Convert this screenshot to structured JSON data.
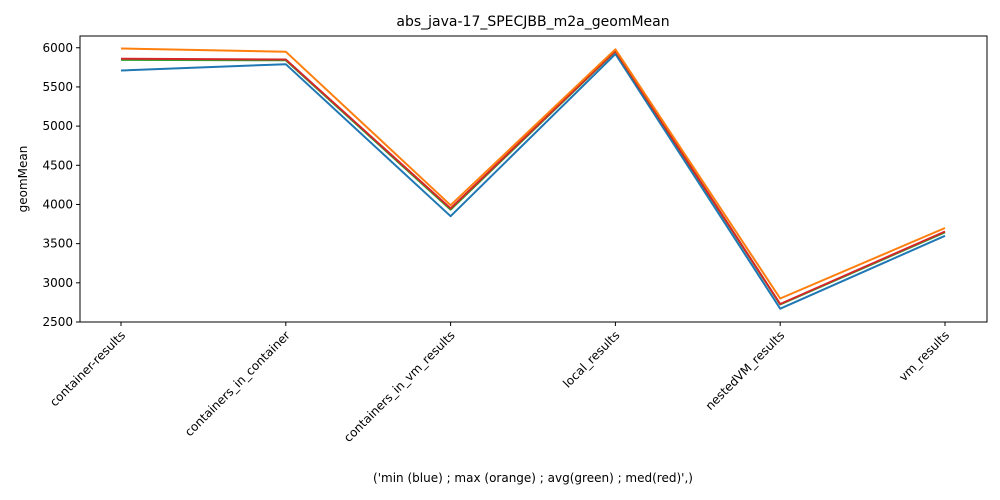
{
  "chart_data": {
    "type": "line",
    "title": "abs_java-17_SPECJBB_m2a_geomMean",
    "xlabel": "('min (blue) ; max (orange) ; avg(green) ; med(red)',)",
    "ylabel": "geomMean",
    "categories": [
      "container-results",
      "containers_in_container",
      "containers_in_vm_results",
      "local_results",
      "nestedVM_results",
      "vm_results"
    ],
    "ylim": [
      2500,
      6150
    ],
    "yticks": [
      2500,
      3000,
      3500,
      4000,
      4500,
      5000,
      5500,
      6000
    ],
    "ytick_labels": [
      "2500",
      "3000",
      "3500",
      "4000",
      "4500",
      "5000",
      "5500",
      "6000"
    ],
    "grid": false,
    "series": [
      {
        "name": "min",
        "color": "#1f77b4",
        "values": [
          5710,
          5790,
          3850,
          5920,
          2670,
          3600
        ]
      },
      {
        "name": "avg",
        "color": "#2ca02c",
        "values": [
          5845,
          5840,
          3935,
          5955,
          2725,
          3645
        ]
      },
      {
        "name": "med",
        "color": "#d62728",
        "values": [
          5860,
          5850,
          3950,
          5960,
          2730,
          3655
        ]
      },
      {
        "name": "max",
        "color": "#ff7f0e",
        "values": [
          5990,
          5950,
          3990,
          5980,
          2800,
          3700
        ]
      }
    ]
  }
}
